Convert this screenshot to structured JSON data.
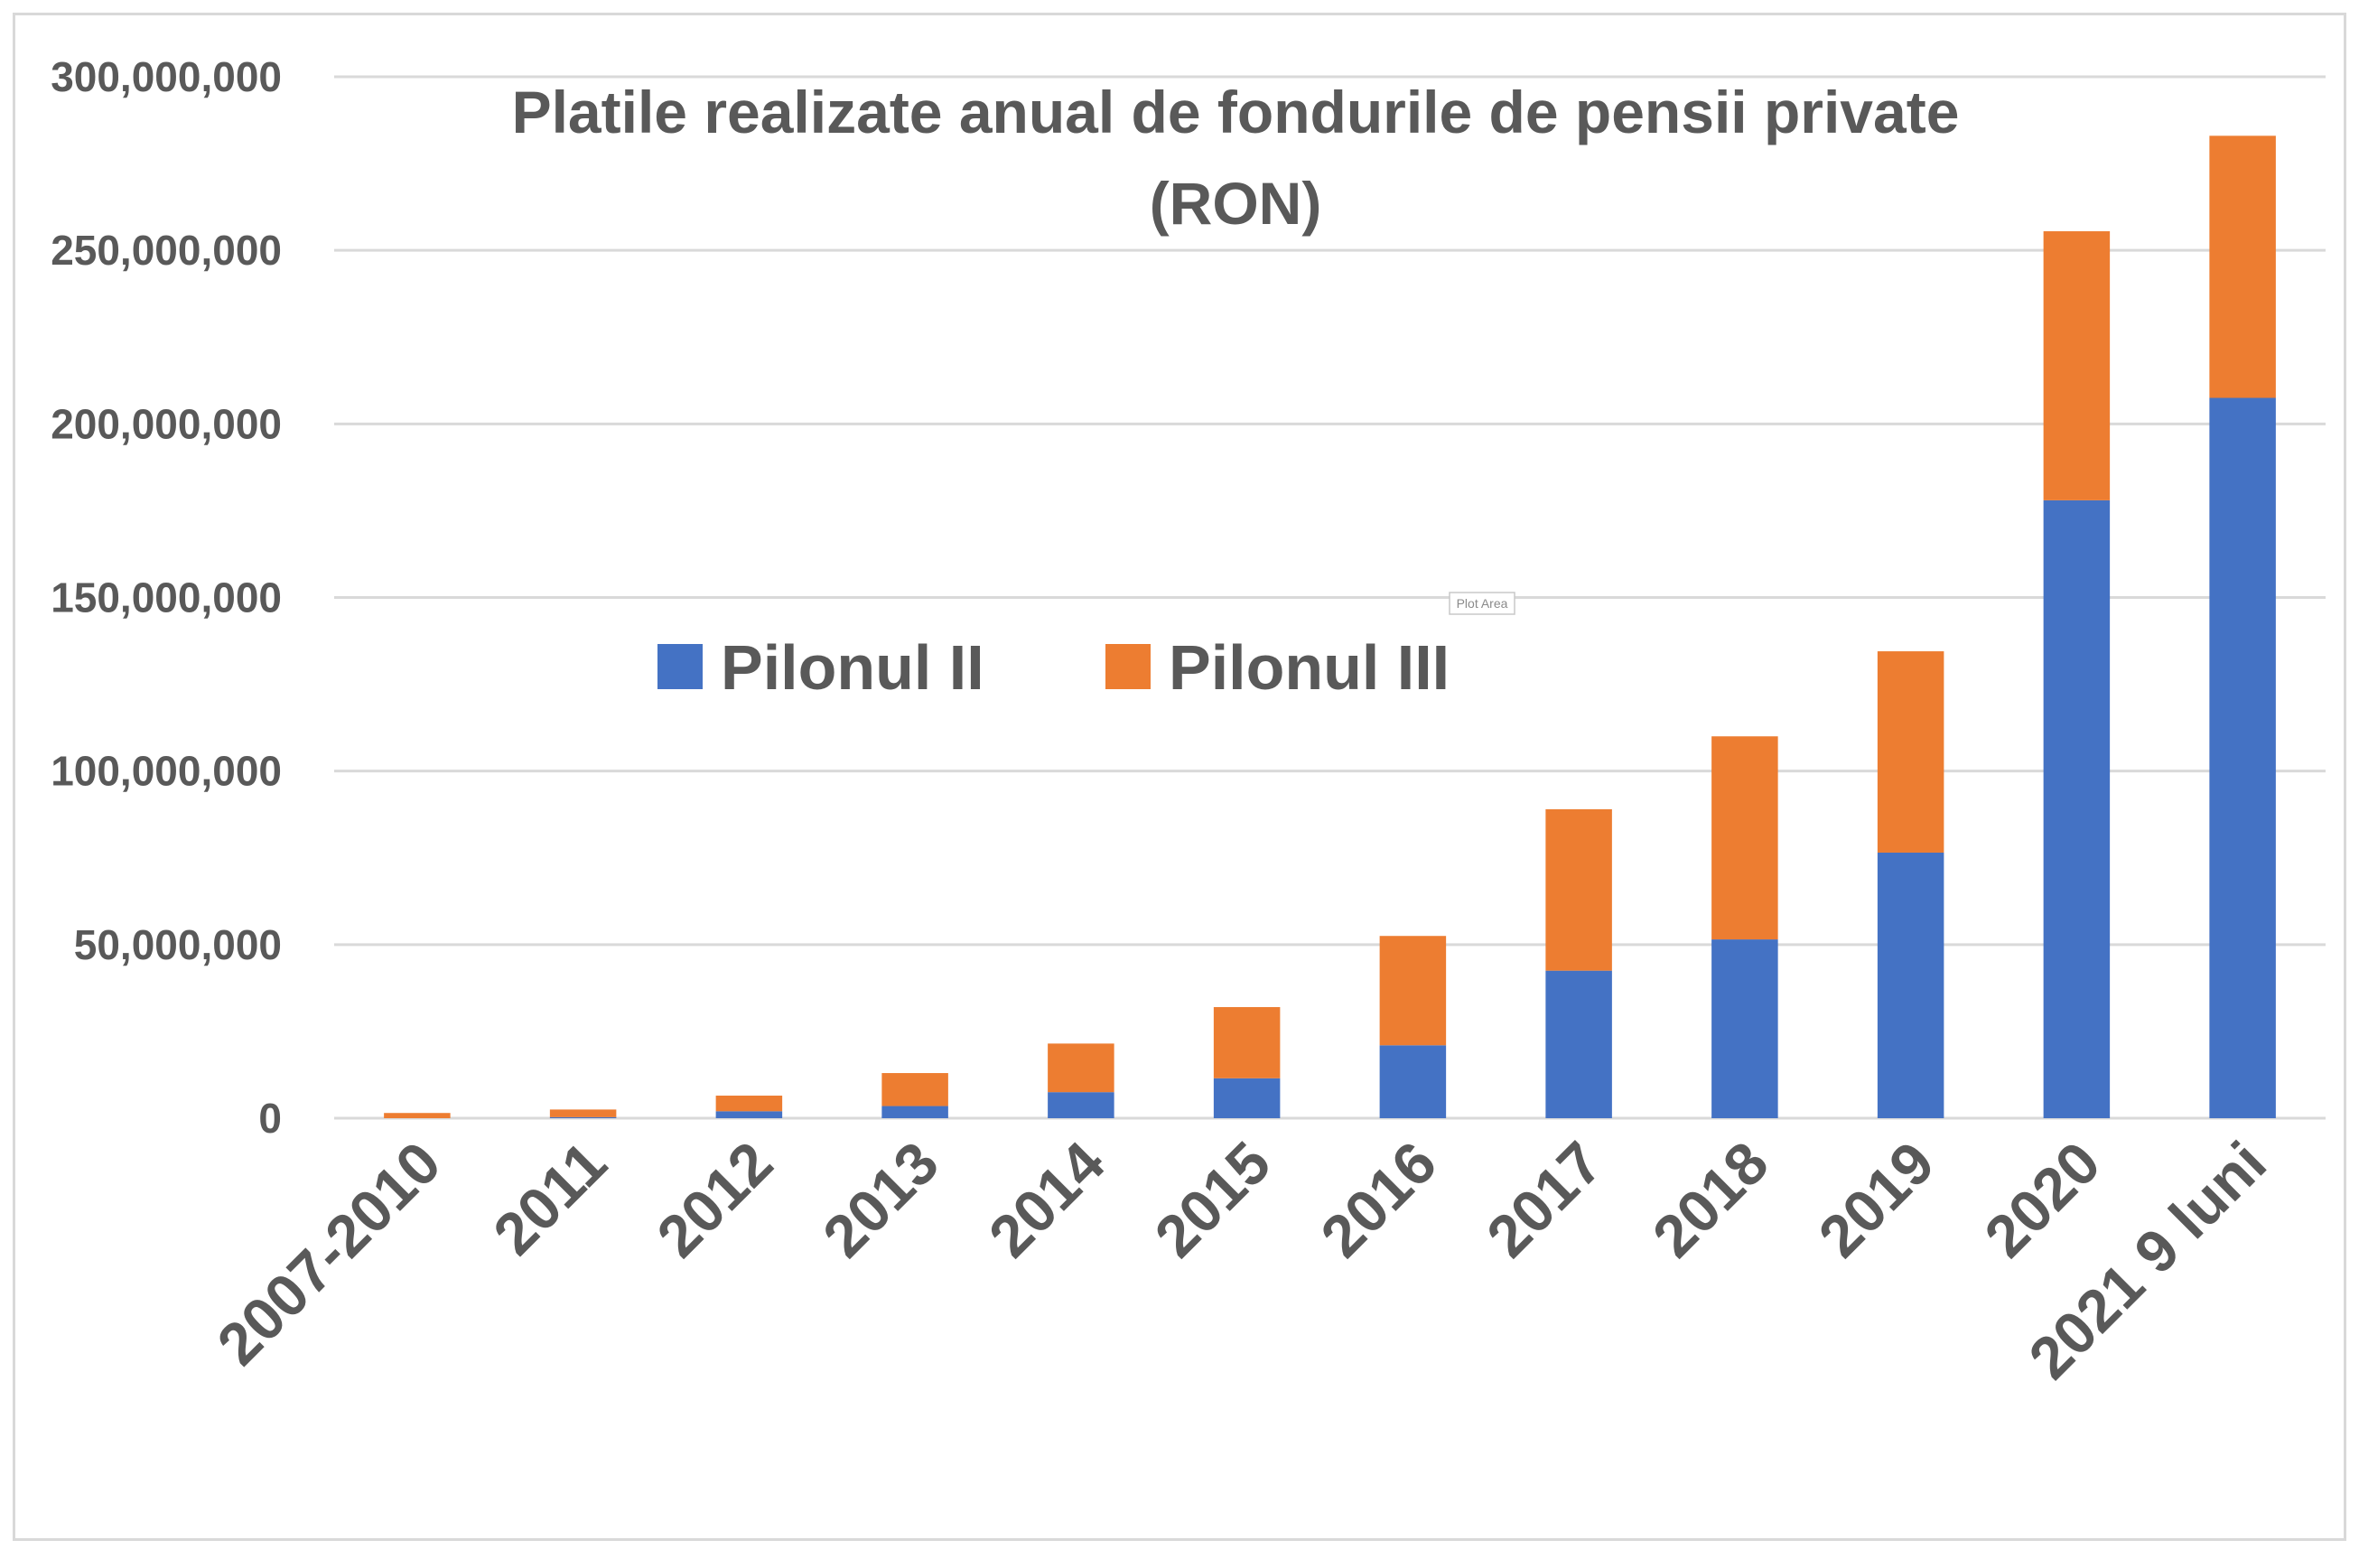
{
  "chart_data": {
    "type": "bar",
    "stacked": true,
    "title_lines": [
      "Platile realizate anual de fondurile de pensii private",
      "(RON)"
    ],
    "categories": [
      "2007-2010",
      "2011",
      "2012",
      "2013",
      "2014",
      "2015",
      "2016",
      "2017",
      "2018",
      "2019",
      "2020",
      "2021 9 luni"
    ],
    "series": [
      {
        "name": "Pilonul II",
        "color": "#4472C4",
        "values": [
          0,
          300000,
          2000000,
          3500000,
          7500000,
          11500000,
          21000000,
          42500000,
          51500000,
          76500000,
          178000000,
          207500000
        ]
      },
      {
        "name": "Pilonul III",
        "color": "#ED7D31",
        "values": [
          1500000,
          2200000,
          4500000,
          9500000,
          14000000,
          20500000,
          31500000,
          46500000,
          58500000,
          58000000,
          77500000,
          75500000
        ]
      }
    ],
    "y_ticks": [
      "0",
      "50,000,000",
      "100,000,000",
      "150,000,000",
      "200,000,000",
      "250,000,000",
      "300,000,000"
    ],
    "ylim": [
      0,
      300000000
    ],
    "grid": true,
    "legend_position": "center-left",
    "plot_area_tag": "Plot Area"
  }
}
